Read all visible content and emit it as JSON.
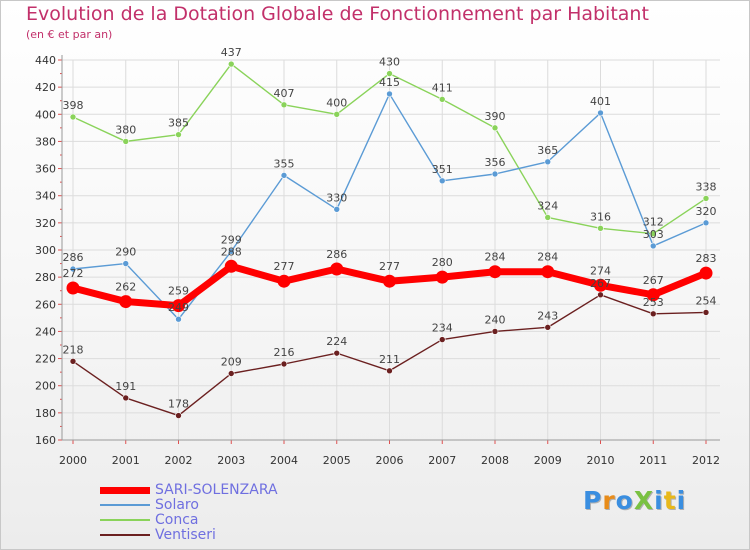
{
  "title": "Evolution de la Dotation Globale de Fonctionnement par Habitant",
  "subtitle": "(en € et par an)",
  "logo": {
    "text": "ProXiti",
    "colors": [
      "#3a8ee0",
      "#e88c1a",
      "#3a8ee0",
      "#7ac142",
      "#3a8ee0",
      "#e8b81a",
      "#3a8ee0"
    ]
  },
  "chart_data": {
    "type": "line",
    "title": "Evolution de la Dotation Globale de Fonctionnement par Habitant",
    "subtitle": "(en € et par an)",
    "x": [
      "2000",
      "2001",
      "2002",
      "2003",
      "2004",
      "2005",
      "2006",
      "2007",
      "2008",
      "2009",
      "2010",
      "2011",
      "2012"
    ],
    "ylim": [
      160,
      440
    ],
    "yticks": [
      160,
      180,
      200,
      220,
      240,
      260,
      280,
      300,
      320,
      340,
      360,
      380,
      400,
      420,
      440
    ],
    "grid": true,
    "legend": "bottom-left",
    "series": [
      {
        "name": "Ventiseri",
        "color": "#6b2020",
        "values": [
          218,
          191,
          178,
          209,
          216,
          224,
          211,
          234,
          240,
          243,
          267,
          253,
          254
        ]
      },
      {
        "name": "Conca",
        "color": "#8ad35a",
        "values": [
          398,
          380,
          385,
          437,
          407,
          400,
          430,
          411,
          390,
          324,
          316,
          312,
          338
        ]
      },
      {
        "name": "Solaro",
        "color": "#5b9bd5",
        "values": [
          286,
          290,
          249,
          299,
          355,
          330,
          415,
          351,
          356,
          365,
          401,
          303,
          320
        ]
      },
      {
        "name": "SARI-SOLENZARA",
        "color": "#ff0000",
        "values": [
          272,
          262,
          259,
          288,
          277,
          286,
          277,
          280,
          284,
          284,
          274,
          267,
          283
        ]
      }
    ]
  },
  "legend_items": [
    {
      "name": "SARI-SOLENZARA",
      "color": "#ff0000"
    },
    {
      "name": "Solaro",
      "color": "#5b9bd5"
    },
    {
      "name": "Conca",
      "color": "#8ad35a"
    },
    {
      "name": "Ventiseri",
      "color": "#6b2020"
    }
  ]
}
